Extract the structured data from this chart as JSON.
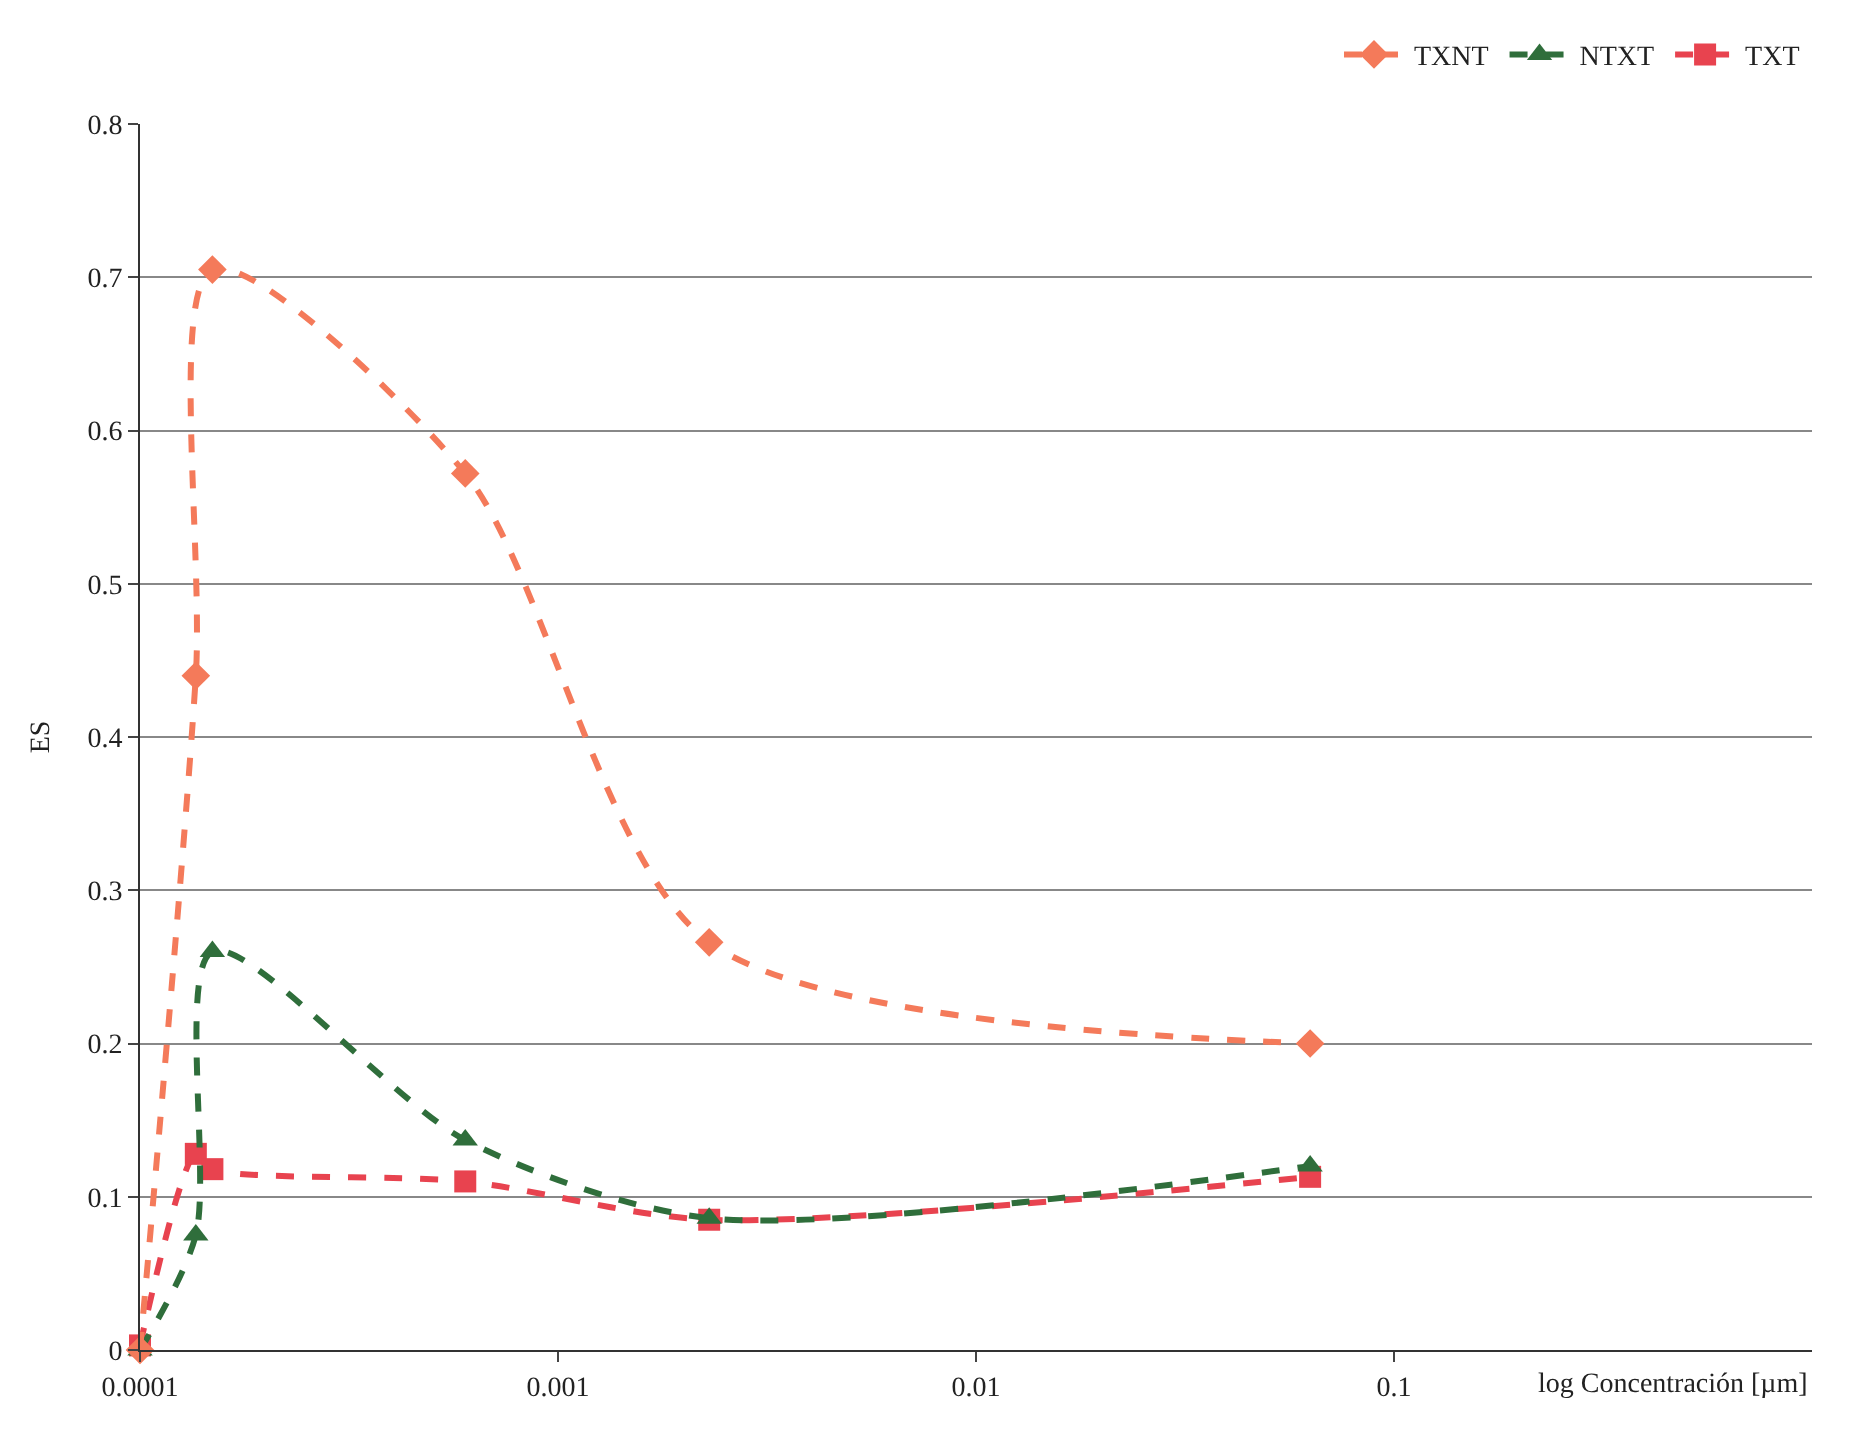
{
  "chart_data": {
    "type": "line",
    "xlabel": "log Concentración [µm]",
    "ylabel": "ES",
    "log": "x",
    "xlim": [
      0.0001,
      1
    ],
    "xticks": [
      0.0001,
      0.001,
      0.01,
      0.1
    ],
    "ylim": [
      0,
      0.8
    ],
    "yticks": [
      0,
      0.1,
      0.2,
      0.3,
      0.4,
      0.5,
      0.6,
      0.7,
      0.8
    ],
    "grid": "y",
    "legend": "top right",
    "line_style": "dashed",
    "series": [
      {
        "name": "TXNT",
        "color": "#f47a5a",
        "marker": "diamond",
        "x": [
          0.0001,
          0.000136,
          0.000149,
          0.0006,
          0.0023,
          0.063
        ],
        "values": [
          0.0,
          0.44,
          0.705,
          0.572,
          0.266,
          0.2
        ]
      },
      {
        "name": "NTXT",
        "color": "#2f6e3b",
        "marker": "triangle",
        "x": [
          0.0001,
          0.000136,
          0.000149,
          0.0006,
          0.0023,
          0.063
        ],
        "values": [
          0.0,
          0.075,
          0.26,
          0.137,
          0.086,
          0.12
        ]
      },
      {
        "name": "TXT",
        "color": "#e8434f",
        "marker": "square",
        "x": [
          0.0001,
          0.000136,
          0.000149,
          0.0006,
          0.0023,
          0.063
        ],
        "values": [
          0.003,
          0.128,
          0.118,
          0.11,
          0.085,
          0.113
        ]
      }
    ]
  }
}
